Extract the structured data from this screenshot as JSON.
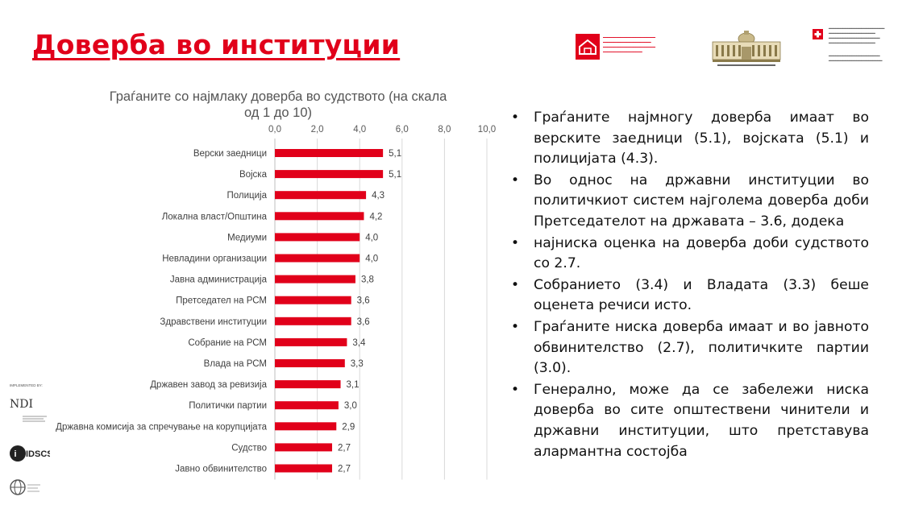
{
  "slide": {
    "title": "Доверба во институции"
  },
  "logos": {
    "parliament": "parliament-support-programme-logo",
    "assembly": "assembly-building-logo",
    "swiss": "swiss-confederation-logo",
    "ndi": "NDI",
    "idscs": "IDSCS",
    "implemented_by": "IMPLEMENTED BY:"
  },
  "colors": {
    "title": "#e1001a",
    "bar": "#e1001a",
    "grid": "#d9d9d9",
    "axis_text": "#595959"
  },
  "chart_data": {
    "type": "bar",
    "orientation": "horizontal",
    "title": "Граѓаните со најмлаку доверба во судството (на скала од 1 до 10)",
    "title_lines": [
      "Граѓаните со најмлаку доверба во судството (на скала",
      "од 1 до 10)"
    ],
    "categories": [
      "Верски заедници",
      "Војска",
      "Полиција",
      "Локална власт/Општина",
      "Медиуми",
      "Невладини организации",
      "Јавна администрација",
      "Претседател на РСМ",
      "Здравствени институции",
      "Собрание на РСМ",
      "Влада на РСМ",
      "Државен завод за ревизија",
      "Политички партии",
      "Државна комисија за спречување на корупцијата",
      "Судство",
      "Јавно обвинителство"
    ],
    "values": [
      5.1,
      5.1,
      4.3,
      4.2,
      4.0,
      4.0,
      3.8,
      3.6,
      3.6,
      3.4,
      3.3,
      3.1,
      3.0,
      2.9,
      2.7,
      2.7
    ],
    "value_labels": [
      "5,1",
      "5,1",
      "4,3",
      "4,2",
      "4,0",
      "4,0",
      "3,8",
      "3,6",
      "3,6",
      "3,4",
      "3,3",
      "3,1",
      "3,0",
      "2,9",
      "2,7",
      "2,7"
    ],
    "x_ticks": [
      0,
      2,
      4,
      6,
      8,
      10
    ],
    "x_tick_labels": [
      "0,0",
      "2,0",
      "4,0",
      "6,0",
      "8,0",
      "10,0"
    ],
    "xlim": [
      0,
      10
    ],
    "axis_position": "top",
    "grid": true
  },
  "bullets": [
    "Граѓаните најмногу доверба имаат во верските заедници (5.1), војската (5.1) и полицијата (4.3).",
    "Во однос на државни институции во политичкиот систем најголема доверба доби Претседателот на државата – 3.6, додека",
    "најниска оценка на доверба доби судството со 2.7.",
    "Собранието (3.4) и Владата (3.3) беше оценета речиси исто.",
    "Граѓаните ниска доверба имаат и во јавното обвинителство (2.7), политичките партии (3.0).",
    "Генерално, може да се забележи ниска доверба во сите општествени чинители и државни институции, што претставува алармантна состојба"
  ]
}
